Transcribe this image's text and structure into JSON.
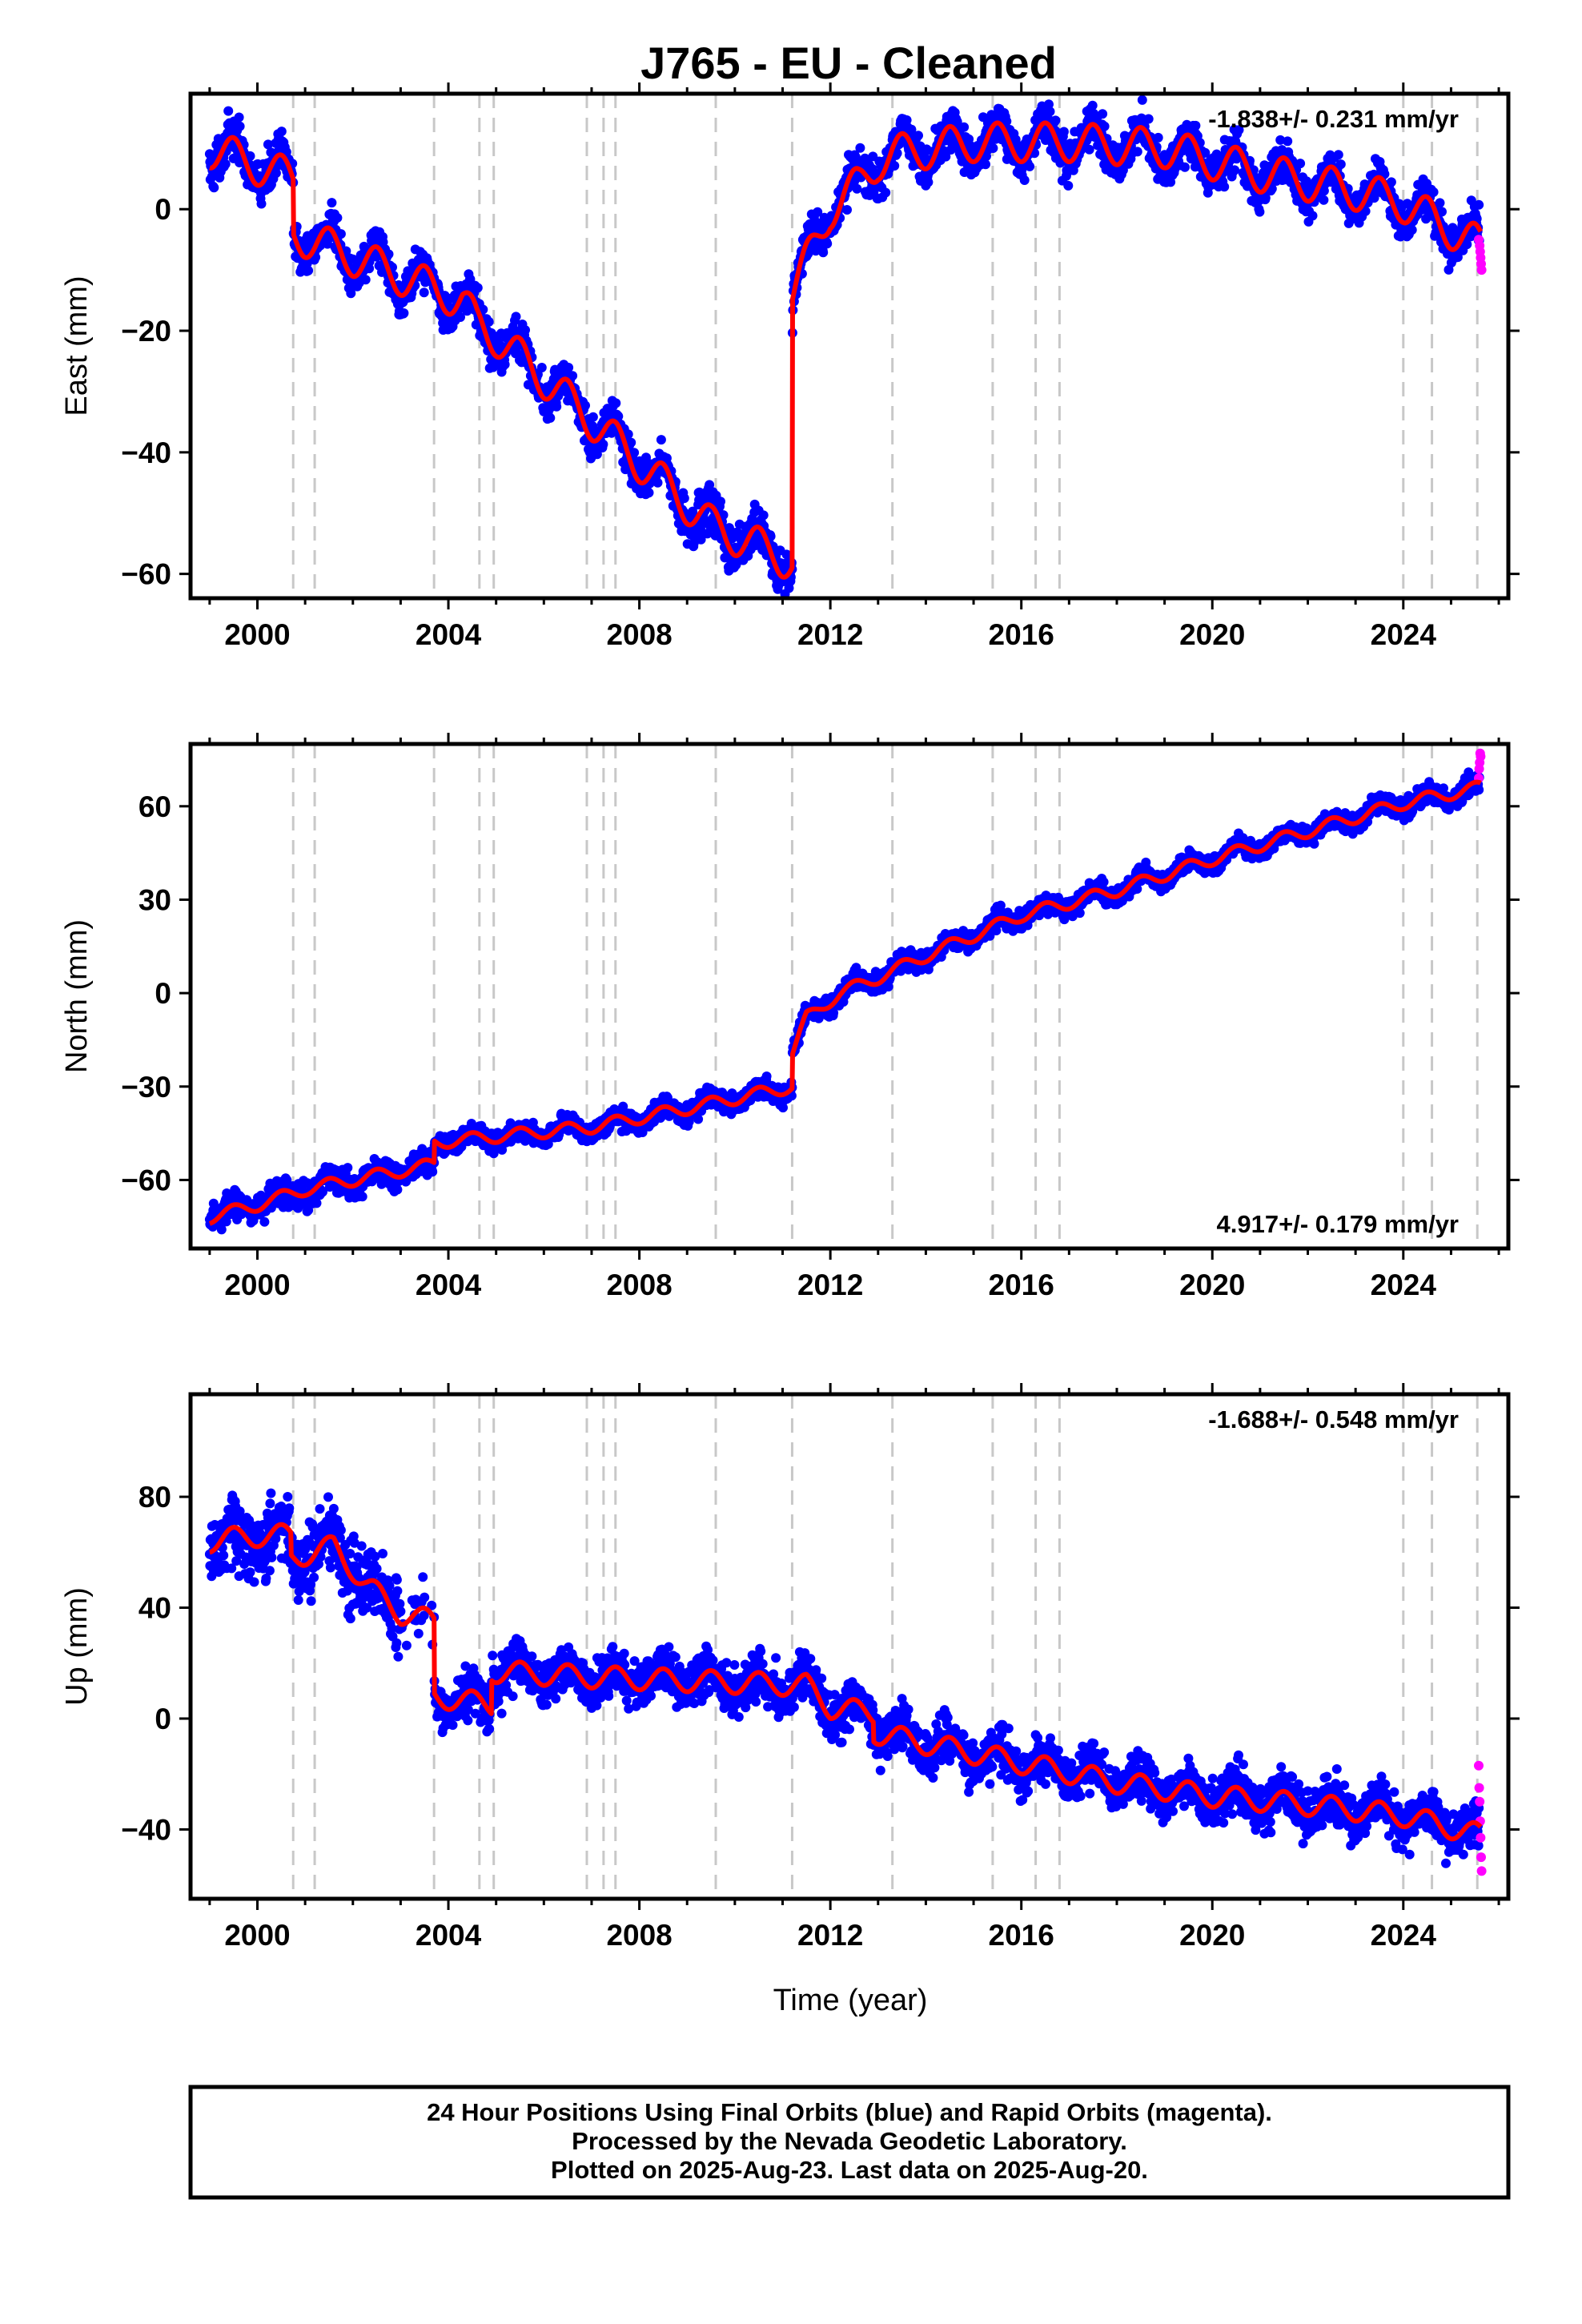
{
  "title": "J765  - EU - Cleaned",
  "xlabel": "Time (year)",
  "caption": [
    "24 Hour Positions Using Final Orbits (blue) and Rapid Orbits (magenta).",
    "Processed by the Nevada Geodetic Laboratory.",
    "Plotted on 2025-Aug-23. Last data on 2025-Aug-20."
  ],
  "colors": {
    "final": "#0000ff",
    "rapid": "#ff00ff",
    "model": "#ff0000",
    "step": "#c8c8c8"
  },
  "chart_data": [
    {
      "type": "scatter",
      "component": "East",
      "ylabel": "East (mm)",
      "rate": "-1.838+/- 0.231 mm/yr",
      "rate_position": "top-right",
      "xlim": [
        1998.6,
        2026.2
      ],
      "ylim": [
        -64,
        19
      ],
      "xticks": [
        2000,
        2004,
        2008,
        2012,
        2016,
        2020,
        2024
      ],
      "yticks": [
        0,
        -20,
        -40,
        -60
      ],
      "scatter": 3.0,
      "seasonal": 3.2,
      "model_anchors": [
        [
          1999.0,
          10
        ],
        [
          2000.75,
          5
        ],
        [
          2000.76,
          -4
        ],
        [
          2004.3,
          -15
        ],
        [
          2004.6,
          -19
        ],
        [
          2005.0,
          -21
        ],
        [
          2009.5,
          -52
        ],
        [
          2011.2,
          -58
        ],
        [
          2011.21,
          -14
        ],
        [
          2011.6,
          -7
        ],
        [
          2012.0,
          0
        ],
        [
          2012.6,
          4
        ],
        [
          2013.0,
          8
        ],
        [
          2013.3,
          9
        ],
        [
          2015.0,
          11
        ],
        [
          2017.0,
          11
        ],
        [
          2019.0,
          10
        ],
        [
          2021.0,
          6
        ],
        [
          2023.0,
          3
        ],
        [
          2024.0,
          1
        ],
        [
          2025.6,
          -6
        ]
      ],
      "rapid": [
        [
          2025.58,
          -5
        ],
        [
          2025.6,
          -6
        ],
        [
          2025.61,
          -7
        ],
        [
          2025.62,
          -8
        ],
        [
          2025.63,
          -9
        ],
        [
          2025.64,
          -10
        ]
      ]
    },
    {
      "type": "scatter",
      "component": "North",
      "ylabel": "North (mm)",
      "rate": "4.917+/- 0.179 mm/yr",
      "rate_position": "bottom-right",
      "xlim": [
        1998.6,
        2026.2
      ],
      "ylim": [
        -82,
        80
      ],
      "xticks": [
        2000,
        2004,
        2008,
        2012,
        2016,
        2020,
        2024
      ],
      "yticks": [
        60,
        30,
        0,
        -30,
        -60
      ],
      "scatter": 2.8,
      "seasonal": 2.0,
      "model_anchors": [
        [
          1999.0,
          -72
        ],
        [
          2000.0,
          -68
        ],
        [
          2001.0,
          -63
        ],
        [
          2002.0,
          -60
        ],
        [
          2003.7,
          -55
        ],
        [
          2003.71,
          -48
        ],
        [
          2005.0,
          -46
        ],
        [
          2007.0,
          -43
        ],
        [
          2009.0,
          -37
        ],
        [
          2011.2,
          -30
        ],
        [
          2011.21,
          -19
        ],
        [
          2011.5,
          -8
        ],
        [
          2012.2,
          0
        ],
        [
          2013.0,
          5
        ],
        [
          2014.0,
          12
        ],
        [
          2016.0,
          25
        ],
        [
          2018.0,
          33
        ],
        [
          2020.0,
          43
        ],
        [
          2022.0,
          52
        ],
        [
          2024.0,
          61
        ],
        [
          2025.6,
          66
        ]
      ],
      "rapid": [
        [
          2025.58,
          69
        ],
        [
          2025.59,
          72
        ],
        [
          2025.6,
          74
        ],
        [
          2025.61,
          77
        ],
        [
          2025.62,
          76
        ]
      ]
    },
    {
      "type": "scatter",
      "component": "Up",
      "ylabel": "Up (mm)",
      "rate": "-1.688+/- 0.548 mm/yr",
      "rate_position": "top-right",
      "xlim": [
        1998.6,
        2026.2
      ],
      "ylim": [
        -65,
        117
      ],
      "xticks": [
        2000,
        2004,
        2008,
        2012,
        2016,
        2020,
        2024
      ],
      "yticks": [
        80,
        40,
        0,
        -40
      ],
      "scatter": 7.5,
      "seasonal": 4.0,
      "model_anchors": [
        [
          1999.0,
          64
        ],
        [
          2000.0,
          66
        ],
        [
          2000.7,
          66
        ],
        [
          2000.71,
          58
        ],
        [
          2001.6,
          62
        ],
        [
          2002.3,
          48
        ],
        [
          2003.0,
          38
        ],
        [
          2003.7,
          35
        ],
        [
          2003.71,
          8
        ],
        [
          2004.9,
          5
        ],
        [
          2004.91,
          17
        ],
        [
          2007.0,
          15
        ],
        [
          2011.5,
          12
        ],
        [
          2012.0,
          4
        ],
        [
          2012.9,
          2
        ],
        [
          2012.91,
          -5
        ],
        [
          2014.0,
          -9
        ],
        [
          2016.0,
          -16
        ],
        [
          2018.0,
          -23
        ],
        [
          2020.0,
          -28
        ],
        [
          2022.0,
          -31
        ],
        [
          2024.0,
          -35
        ],
        [
          2025.6,
          -42
        ]
      ],
      "rapid": [
        [
          2025.58,
          -17
        ],
        [
          2025.59,
          -25
        ],
        [
          2025.6,
          -30
        ],
        [
          2025.61,
          -37
        ],
        [
          2025.62,
          -43
        ],
        [
          2025.63,
          -50
        ],
        [
          2025.64,
          -55
        ]
      ]
    }
  ],
  "step_epochs": [
    2000.75,
    2001.2,
    2003.7,
    2004.65,
    2004.95,
    2006.9,
    2007.25,
    2007.5,
    2009.6,
    2011.2,
    2013.3,
    2015.4,
    2016.3,
    2016.8,
    2024.0,
    2024.6,
    2025.55
  ]
}
